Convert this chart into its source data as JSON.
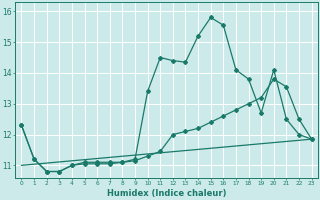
{
  "title": "",
  "xlabel": "Humidex (Indice chaleur)",
  "ylabel": "",
  "bg_color": "#cdeaea",
  "grid_color": "#ffffff",
  "line_color": "#1a7a6a",
  "xlim": [
    -0.5,
    23.5
  ],
  "ylim": [
    10.6,
    16.3
  ],
  "xticks": [
    0,
    1,
    2,
    3,
    4,
    5,
    6,
    7,
    8,
    9,
    10,
    11,
    12,
    13,
    14,
    15,
    16,
    17,
    18,
    19,
    20,
    21,
    22,
    23
  ],
  "yticks": [
    11,
    12,
    13,
    14,
    15,
    16
  ],
  "line1_x": [
    0,
    1,
    2,
    3,
    4,
    5,
    6,
    7,
    8,
    9,
    10,
    11,
    12,
    13,
    14,
    15,
    16,
    17,
    18,
    19,
    20,
    21,
    22,
    23
  ],
  "line1_y": [
    12.3,
    11.2,
    10.8,
    10.8,
    11.0,
    11.1,
    11.1,
    11.1,
    11.1,
    11.2,
    13.4,
    14.5,
    14.4,
    14.35,
    15.2,
    15.8,
    15.55,
    14.1,
    13.8,
    12.7,
    14.1,
    12.5,
    12.0,
    11.85
  ],
  "line2_x": [
    0,
    1,
    2,
    3,
    4,
    5,
    6,
    7,
    8,
    9,
    10,
    11,
    12,
    13,
    14,
    15,
    16,
    17,
    18,
    19,
    20,
    21,
    22,
    23
  ],
  "line2_y": [
    12.3,
    11.2,
    10.8,
    10.8,
    11.0,
    11.05,
    11.05,
    11.05,
    11.1,
    11.15,
    11.3,
    11.45,
    12.0,
    12.1,
    12.2,
    12.4,
    12.6,
    12.8,
    13.0,
    13.2,
    13.8,
    13.55,
    12.5,
    11.85
  ],
  "line3_x": [
    0,
    23
  ],
  "line3_y": [
    11.0,
    11.85
  ],
  "figsize": [
    3.2,
    2.0
  ],
  "dpi": 100
}
